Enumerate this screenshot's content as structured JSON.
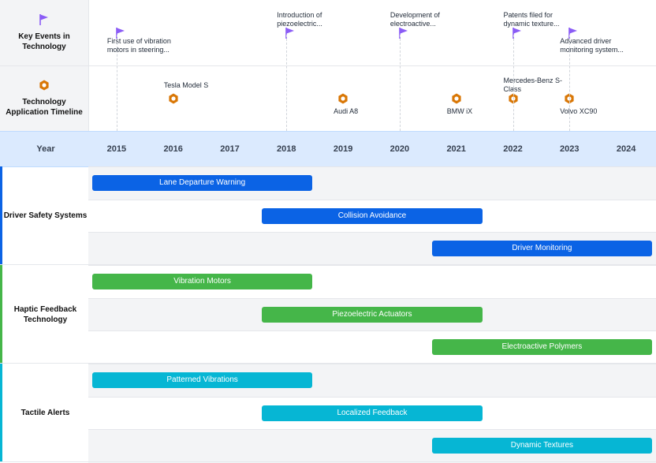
{
  "colors": {
    "event": "#8b5cf6",
    "app": "#d97706",
    "safety": "#0b63e5",
    "haptic": "#45b649",
    "tactile": "#06b6d4"
  },
  "icons": {
    "event": "flag-icon",
    "app": "hexagon-nut-icon"
  },
  "header": {
    "events_label": [
      "Key Events in",
      "Technology"
    ],
    "apps_label": [
      "Technology",
      "Application Timeline"
    ],
    "year_label": "Year"
  },
  "chart_data": {
    "type": "gantt-timeline",
    "x_unit": "year",
    "xlim": [
      2014.5,
      2024.5
    ],
    "years": [
      "2015",
      "2016",
      "2017",
      "2018",
      "2019",
      "2020",
      "2021",
      "2022",
      "2023",
      "2024"
    ],
    "key_events": [
      {
        "year": 2015,
        "text": [
          "First use of vibration",
          "motors in steering..."
        ],
        "text_pos": "below"
      },
      {
        "year": 2018,
        "text": [
          "Introduction of",
          "piezoelectric..."
        ],
        "text_pos": "above"
      },
      {
        "year": 2020,
        "text": [
          "Development of",
          "electroactive..."
        ],
        "text_pos": "above"
      },
      {
        "year": 2022,
        "text": [
          "Patents filed for",
          "dynamic texture..."
        ],
        "text_pos": "above"
      },
      {
        "year": 2023,
        "text": [
          "Advanced driver",
          "monitoring system..."
        ],
        "text_pos": "below"
      }
    ],
    "applications": [
      {
        "year": 2016,
        "text": [
          "Tesla Model S"
        ],
        "text_pos": "above"
      },
      {
        "year": 2019,
        "text": [
          "Audi A8"
        ],
        "text_pos": "below"
      },
      {
        "year": 2021,
        "text": [
          "BMW iX"
        ],
        "text_pos": "below"
      },
      {
        "year": 2022,
        "text": [
          "Mercedes-Benz S-",
          "Class"
        ],
        "text_pos": "above"
      },
      {
        "year": 2023,
        "text": [
          "Volvo XC90"
        ],
        "text_pos": "below"
      }
    ],
    "groups": [
      {
        "label": [
          "Driver Safety Systems"
        ],
        "color_key": "safety",
        "tasks": [
          {
            "name": "Lane Departure Warning",
            "start": 2014.5,
            "end": 2018.5
          },
          {
            "name": "Collision Avoidance",
            "start": 2017.5,
            "end": 2021.5
          },
          {
            "name": "Driver Monitoring",
            "start": 2020.5,
            "end": 2024.5
          }
        ]
      },
      {
        "label": [
          "Haptic Feedback",
          "Technology"
        ],
        "color_key": "haptic",
        "tasks": [
          {
            "name": "Vibration Motors",
            "start": 2014.5,
            "end": 2018.5
          },
          {
            "name": "Piezoelectric Actuators",
            "start": 2017.5,
            "end": 2021.5
          },
          {
            "name": "Electroactive Polymers",
            "start": 2020.5,
            "end": 2024.5
          }
        ]
      },
      {
        "label": [
          "Tactile Alerts"
        ],
        "color_key": "tactile",
        "tasks": [
          {
            "name": "Patterned Vibrations",
            "start": 2014.5,
            "end": 2018.5
          },
          {
            "name": "Localized Feedback",
            "start": 2017.5,
            "end": 2021.5
          },
          {
            "name": "Dynamic Textures",
            "start": 2020.5,
            "end": 2024.5
          }
        ]
      }
    ]
  }
}
